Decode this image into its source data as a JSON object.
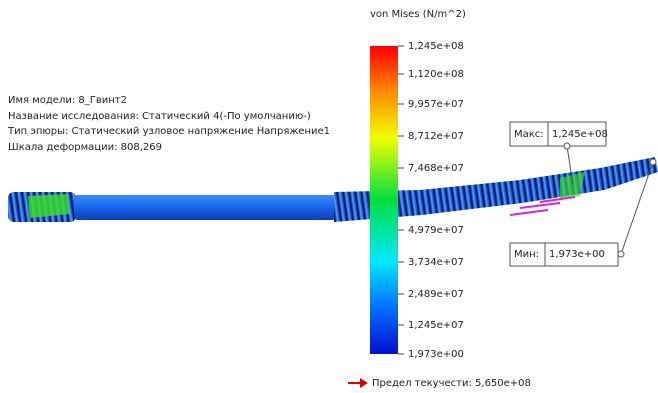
{
  "info": {
    "lines": [
      "Имя модели: 8_Гвинт2",
      "Название исследования: Статический 4(-По умолчанию-)",
      "Тип эпюры: Статический узловое напряжение Напряжение1",
      "Шкала деформации: 808,269"
    ]
  },
  "legend": {
    "title": "von Mises (N/m^2)",
    "ticks": [
      "1,245e+08",
      "1,120e+08",
      "9,957e+07",
      "8,712e+07",
      "7,468e+07",
      "4,979e+07",
      "3,734e+07",
      "2,489e+07",
      "1,245e+07",
      "1,973e+00"
    ]
  },
  "max": {
    "label": "Макс:",
    "value": "1,245e+08"
  },
  "min": {
    "label": "Мин:",
    "value": "1,973e+00"
  },
  "yield": {
    "text": "Предел текучести: 5,650e+08"
  }
}
